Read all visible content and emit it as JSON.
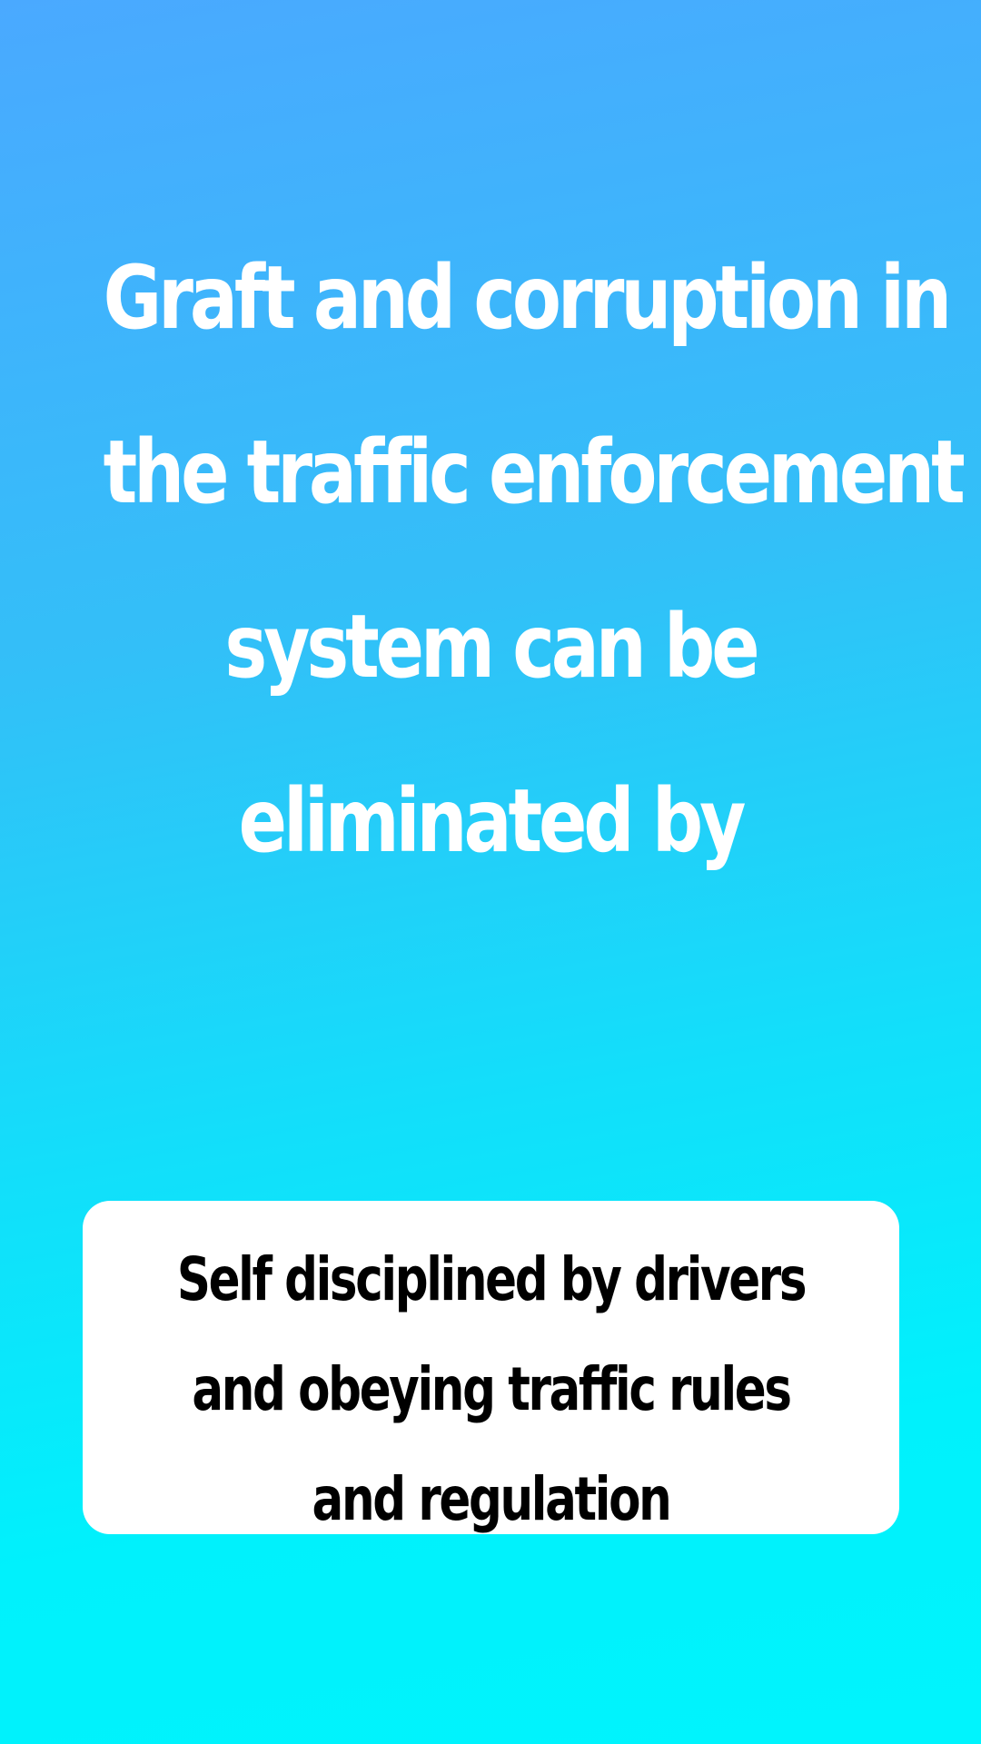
{
  "background": {
    "gradient_top": "#4aa9ff",
    "gradient_bottom": "#00f4fd"
  },
  "question": {
    "lines": [
      "Graft and corruption in",
      "the traffic enforcement",
      "system can be",
      "eliminated by"
    ],
    "color": "#ffffff"
  },
  "answer": {
    "lines": [
      "Self disciplined by drivers",
      "and obeying traffic rules",
      "and regulation"
    ],
    "text_color": "#000000",
    "card_color": "#ffffff"
  }
}
